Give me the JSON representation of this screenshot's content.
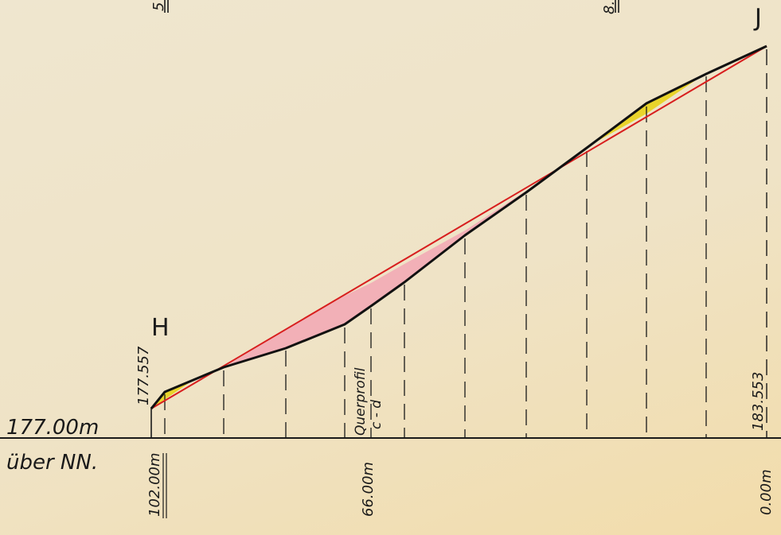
{
  "profile": {
    "start_point_label": "H",
    "end_point_label": "J",
    "datum": {
      "elevation_label": "177.00m",
      "reference_label": "über NN."
    },
    "start_elevation": "177.557",
    "end_elevation": "183.553",
    "section_marker": {
      "line1": "Querprofil",
      "line2": "c - d"
    },
    "distance_labels": {
      "start": "102.00m",
      "middle": "66.00m",
      "end": "0.00m"
    },
    "top_cut_labels": [
      "5",
      "8."
    ],
    "colors": {
      "terrain_line": "#111111",
      "design_grade_line": "#d81e1e",
      "cut_fill": "#f2a7b4",
      "fill_fill": "#e8d21a",
      "grid": "#1a1a1a",
      "paper": "#efe6cf"
    },
    "legend_semantics": {
      "terrain_line": "black polyline (ground)",
      "design_grade_line": "red straight line (grade)",
      "pink_area": "cut",
      "yellow_area": "fill"
    }
  }
}
